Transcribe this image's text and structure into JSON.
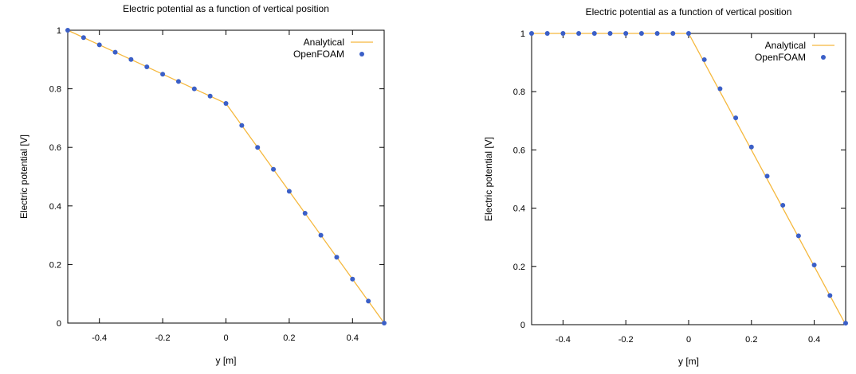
{
  "chart_data": [
    {
      "type": "line",
      "title": "Electric potential as a function of vertical position",
      "xlabel": "y [m]",
      "ylabel": "Electric potential [V]",
      "xlim": [
        -0.5,
        0.5
      ],
      "ylim": [
        0,
        1
      ],
      "xticks": [
        -0.4,
        -0.2,
        0,
        0.2,
        0.4
      ],
      "xtick_labels": [
        "-0.4",
        "-0.2",
        "0",
        "0.2",
        "0.4"
      ],
      "yticks": [
        0,
        0.2,
        0.4,
        0.6,
        0.8,
        1
      ],
      "ytick_labels": [
        "0",
        "0.2",
        "0.4",
        "0.6",
        "0.8",
        "1"
      ],
      "grid": false,
      "legend_position": "top-right",
      "series": [
        {
          "name": "Analytical",
          "style": "line",
          "color": "#f5b83d",
          "x": [
            -0.5,
            0,
            0.5
          ],
          "y": [
            1,
            0.75,
            0
          ]
        },
        {
          "name": "OpenFOAM",
          "style": "points",
          "color": "#3b5fc7",
          "x": [
            -0.5,
            -0.45,
            -0.4,
            -0.35,
            -0.3,
            -0.25,
            -0.2,
            -0.15,
            -0.1,
            -0.05,
            0,
            0.05,
            0.1,
            0.15,
            0.2,
            0.25,
            0.3,
            0.35,
            0.4,
            0.45,
            0.5
          ],
          "y": [
            1,
            0.975,
            0.95,
            0.925,
            0.9,
            0.875,
            0.85,
            0.825,
            0.8,
            0.775,
            0.75,
            0.675,
            0.6,
            0.525,
            0.45,
            0.375,
            0.3,
            0.225,
            0.15,
            0.075,
            0
          ]
        }
      ]
    },
    {
      "type": "line",
      "title": "Electric potential as a function of vertical position",
      "xlabel": "y [m]",
      "ylabel": "Electric potential [V]",
      "xlim": [
        -0.5,
        0.5
      ],
      "ylim": [
        0,
        1
      ],
      "xticks": [
        -0.4,
        -0.2,
        0,
        0.2,
        0.4
      ],
      "xtick_labels": [
        "-0.4",
        "-0.2",
        "0",
        "0.2",
        "0.4"
      ],
      "yticks": [
        0,
        0.2,
        0.4,
        0.6,
        0.8,
        1
      ],
      "ytick_labels": [
        "0",
        "0.2",
        "0.4",
        "0.6",
        "0.8",
        "1"
      ],
      "grid": false,
      "legend_position": "top-right",
      "series": [
        {
          "name": "Analytical",
          "style": "line",
          "color": "#f5b83d",
          "x": [
            -0.5,
            0,
            0.5
          ],
          "y": [
            1,
            1,
            0
          ]
        },
        {
          "name": "OpenFOAM",
          "style": "points",
          "color": "#3b5fc7",
          "x": [
            -0.5,
            -0.45,
            -0.4,
            -0.35,
            -0.3,
            -0.25,
            -0.2,
            -0.15,
            -0.1,
            -0.05,
            0,
            0.05,
            0.1,
            0.15,
            0.2,
            0.25,
            0.3,
            0.35,
            0.4,
            0.45,
            0.5
          ],
          "y": [
            1,
            1,
            1,
            1,
            1,
            1,
            1,
            1,
            1,
            1,
            1,
            0.91,
            0.81,
            0.71,
            0.61,
            0.51,
            0.41,
            0.305,
            0.205,
            0.1,
            0.005
          ]
        }
      ]
    }
  ]
}
